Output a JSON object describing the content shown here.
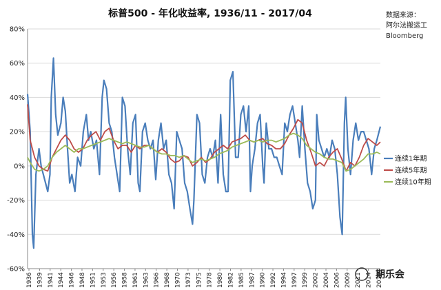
{
  "chart_data": {
    "type": "line",
    "title": "标普500 - 年化收益率, 1936/11 - 2017/04",
    "source": [
      "数据来源：",
      "阿尔法搬运工",
      "Bloomberg"
    ],
    "y_unit": "%",
    "ylim": [
      -60,
      80
    ],
    "y_ticks": [
      "80%",
      "60%",
      "40%",
      "20%",
      "0%",
      "-20%",
      "-40%",
      "-60%"
    ],
    "y_tick_values": [
      80,
      60,
      40,
      20,
      0,
      -20,
      -40,
      -60
    ],
    "x_tick_labels": [
      "1936",
      "1939",
      "1941",
      "1944",
      "1946",
      "1948",
      "1951",
      "1953",
      "1956",
      "1958",
      "1961",
      "1963",
      "1966",
      "1968",
      "1970",
      "1973",
      "1975",
      "1978",
      "1980",
      "1982",
      "1985",
      "1987",
      "1990",
      "1992",
      "1994",
      "1997",
      "1999",
      "2002",
      "2004",
      "2006",
      "2009",
      "2011",
      "2014",
      "2016"
    ],
    "xlim": [
      1936.9,
      2017.3
    ],
    "grid": "horizontal",
    "legend_position": "right",
    "series": [
      {
        "name": "连续1年期",
        "color": "#4a7ebb",
        "x": [
          1936.9,
          1937.5,
          1938.0,
          1938.3,
          1938.8,
          1939.5,
          1940.0,
          1940.5,
          1941.0,
          1941.5,
          1942.0,
          1942.3,
          1942.8,
          1943.3,
          1943.8,
          1944.5,
          1945.0,
          1945.5,
          1946.0,
          1946.5,
          1947.0,
          1947.7,
          1948.3,
          1949.0,
          1949.6,
          1950.3,
          1950.8,
          1951.3,
          1952.0,
          1952.6,
          1953.3,
          1953.9,
          1954.3,
          1954.9,
          1955.5,
          1956.1,
          1956.7,
          1957.3,
          1957.9,
          1958.5,
          1959.1,
          1959.7,
          1960.3,
          1960.9,
          1961.5,
          1962.1,
          1962.5,
          1963.1,
          1963.7,
          1964.3,
          1964.9,
          1965.5,
          1966.1,
          1966.7,
          1967.3,
          1967.9,
          1968.5,
          1969.1,
          1969.7,
          1970.3,
          1970.9,
          1971.5,
          1972.1,
          1972.7,
          1973.3,
          1973.9,
          1974.5,
          1974.8,
          1975.5,
          1976.1,
          1976.7,
          1977.3,
          1977.9,
          1978.5,
          1979.1,
          1979.7,
          1980.3,
          1980.9,
          1981.5,
          1982.1,
          1982.6,
          1983.1,
          1983.7,
          1984.3,
          1984.9,
          1985.5,
          1986.1,
          1986.7,
          1987.3,
          1987.7,
          1988.1,
          1988.7,
          1989.3,
          1989.9,
          1990.5,
          1990.8,
          1991.3,
          1991.9,
          1992.5,
          1993.1,
          1993.7,
          1994.3,
          1994.9,
          1995.5,
          1996.1,
          1996.7,
          1997.3,
          1997.9,
          1998.5,
          1998.9,
          1999.5,
          2000.1,
          2000.7,
          2001.3,
          2001.9,
          2002.5,
          2002.8,
          2003.3,
          2003.9,
          2004.5,
          2005.1,
          2005.7,
          2006.3,
          2006.9,
          2007.5,
          2008.1,
          2008.6,
          2009.1,
          2009.4,
          2009.9,
          2010.5,
          2011.1,
          2011.7,
          2012.3,
          2012.9,
          2013.5,
          2014.1,
          2014.7,
          2015.3,
          2015.9,
          2016.5,
          2017.0,
          2017.3
        ],
        "values": [
          42,
          20,
          -40,
          -48,
          -5,
          10,
          0,
          -5,
          -10,
          -15,
          -5,
          40,
          63,
          30,
          18,
          25,
          40,
          32,
          10,
          -10,
          -5,
          -15,
          5,
          0,
          20,
          30,
          15,
          20,
          10,
          15,
          -5,
          40,
          50,
          45,
          25,
          20,
          5,
          -5,
          -15,
          40,
          35,
          10,
          -5,
          25,
          30,
          -10,
          -15,
          20,
          25,
          15,
          10,
          15,
          -8,
          15,
          25,
          10,
          15,
          -5,
          -10,
          -25,
          20,
          15,
          10,
          -10,
          -15,
          -25,
          -34,
          -20,
          30,
          25,
          -5,
          -10,
          5,
          10,
          5,
          15,
          -10,
          30,
          -5,
          -15,
          -15,
          50,
          55,
          5,
          5,
          30,
          35,
          20,
          35,
          -15,
          0,
          10,
          25,
          30,
          0,
          -10,
          25,
          10,
          10,
          5,
          5,
          0,
          -5,
          25,
          20,
          30,
          35,
          25,
          15,
          5,
          35,
          10,
          -10,
          -15,
          -25,
          -20,
          30,
          15,
          10,
          5,
          10,
          5,
          15,
          10,
          -5,
          -30,
          -40,
          25,
          40,
          10,
          -5,
          15,
          25,
          15,
          20,
          20,
          15,
          10,
          -5,
          10,
          15,
          20,
          23
        ]
      },
      {
        "name": "连续5年期",
        "color": "#be4b48",
        "x": [
          1936.9,
          1937.5,
          1938.5,
          1939.5,
          1940.5,
          1941.5,
          1942.5,
          1943.5,
          1944.5,
          1945.5,
          1946.5,
          1947.5,
          1948.5,
          1949.5,
          1950.5,
          1951.5,
          1952.5,
          1953.5,
          1954.5,
          1955.5,
          1956.5,
          1957.5,
          1958.5,
          1959.5,
          1960.5,
          1961.5,
          1962.5,
          1963.5,
          1964.5,
          1965.5,
          1966.5,
          1967.5,
          1968.5,
          1969.5,
          1970.5,
          1971.5,
          1972.5,
          1973.5,
          1974.5,
          1975.5,
          1976.5,
          1977.5,
          1978.5,
          1979.5,
          1980.5,
          1981.5,
          1982.5,
          1983.5,
          1984.5,
          1985.5,
          1986.5,
          1987.5,
          1988.5,
          1989.5,
          1990.5,
          1991.5,
          1992.5,
          1993.5,
          1994.5,
          1995.5,
          1996.5,
          1997.5,
          1998.5,
          1999.5,
          2000.5,
          2001.5,
          2002.5,
          2003.5,
          2004.5,
          2005.5,
          2006.5,
          2007.5,
          2008.5,
          2009.5,
          2010.5,
          2011.5,
          2012.5,
          2013.5,
          2014.5,
          2015.5,
          2016.5,
          2017.3
        ],
        "values": [
          36,
          15,
          5,
          0,
          -2,
          -3,
          5,
          10,
          15,
          18,
          15,
          10,
          8,
          10,
          15,
          18,
          20,
          15,
          20,
          22,
          15,
          10,
          12,
          12,
          8,
          12,
          10,
          12,
          12,
          10,
          8,
          10,
          8,
          4,
          2,
          3,
          6,
          5,
          0,
          2,
          5,
          2,
          4,
          8,
          10,
          12,
          10,
          14,
          15,
          16,
          18,
          15,
          14,
          15,
          16,
          13,
          12,
          10,
          10,
          13,
          18,
          22,
          27,
          25,
          15,
          8,
          0,
          2,
          0,
          5,
          8,
          10,
          4,
          -3,
          2,
          0,
          5,
          12,
          16,
          14,
          12,
          14
        ]
      },
      {
        "name": "连续10年期",
        "color": "#9bbb59",
        "x": [
          1936.9,
          1937.5,
          1938.5,
          1939.5,
          1940.5,
          1941.5,
          1942.5,
          1943.5,
          1944.5,
          1945.5,
          1946.5,
          1947.5,
          1948.5,
          1949.5,
          1950.5,
          1951.5,
          1952.5,
          1953.5,
          1954.5,
          1955.5,
          1956.5,
          1957.5,
          1958.5,
          1959.5,
          1960.5,
          1961.5,
          1962.5,
          1963.5,
          1964.5,
          1965.5,
          1966.5,
          1967.5,
          1968.5,
          1969.5,
          1970.5,
          1971.5,
          1972.5,
          1973.5,
          1974.5,
          1975.5,
          1976.5,
          1977.5,
          1978.5,
          1979.5,
          1980.5,
          1981.5,
          1982.5,
          1983.5,
          1984.5,
          1985.5,
          1986.5,
          1987.5,
          1988.5,
          1989.5,
          1990.5,
          1991.5,
          1992.5,
          1993.5,
          1994.5,
          1995.5,
          1996.5,
          1997.5,
          1998.5,
          1999.5,
          2000.5,
          2001.5,
          2002.5,
          2003.5,
          2004.5,
          2005.5,
          2006.5,
          2007.5,
          2008.5,
          2009.5,
          2010.5,
          2011.5,
          2012.5,
          2013.5,
          2014.5,
          2015.5,
          2016.5,
          2017.3
        ],
        "values": [
          5,
          2,
          -2,
          -3,
          -2,
          0,
          5,
          8,
          10,
          12,
          10,
          8,
          10,
          10,
          11,
          12,
          13,
          14,
          15,
          16,
          15,
          14,
          13,
          14,
          13,
          12,
          11,
          11,
          12,
          10,
          8,
          7,
          7,
          6,
          6,
          5,
          6,
          4,
          2,
          3,
          4,
          3,
          4,
          5,
          7,
          8,
          9,
          11,
          12,
          13,
          14,
          15,
          14,
          15,
          14,
          15,
          15,
          14,
          15,
          16,
          18,
          19,
          18,
          16,
          12,
          10,
          8,
          7,
          5,
          4,
          4,
          3,
          2,
          -3,
          -2,
          0,
          2,
          4,
          7,
          7,
          8,
          7
        ]
      }
    ]
  },
  "watermark": "期乐会"
}
